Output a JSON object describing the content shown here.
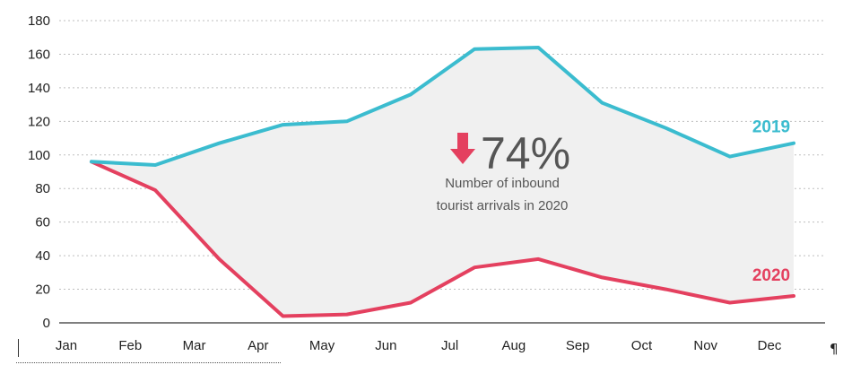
{
  "chart_data": {
    "type": "line",
    "categories": [
      "Jan",
      "Feb",
      "Mar",
      "Apr",
      "May",
      "Jun",
      "Jul",
      "Aug",
      "Sep",
      "Oct",
      "Nov",
      "Dec"
    ],
    "ylim": [
      0,
      180
    ],
    "yticks": [
      0,
      20,
      40,
      60,
      80,
      100,
      120,
      140,
      160,
      180
    ],
    "grid": "horizontal dotted",
    "fill_between_series": true,
    "series": [
      {
        "name": "2019",
        "color": "#3bbccf",
        "values": [
          96,
          94,
          107,
          118,
          120,
          136,
          163,
          164,
          131,
          116,
          99,
          107
        ]
      },
      {
        "name": "2020",
        "color": "#e4405f",
        "values": [
          96,
          79,
          38,
          4,
          5,
          12,
          33,
          38,
          27,
          20,
          12,
          16
        ]
      }
    ],
    "annotation": {
      "arrow_color": "#e4405f",
      "percent": "74%",
      "text_line1": "Number of inbound",
      "text_line2": "tourist arrivals in 2020"
    }
  },
  "colors": {
    "fill": "#f0f0f0",
    "grid": "#bfbfbf",
    "axis": "#333333"
  },
  "page_marks": {
    "pilcrow": "¶"
  }
}
